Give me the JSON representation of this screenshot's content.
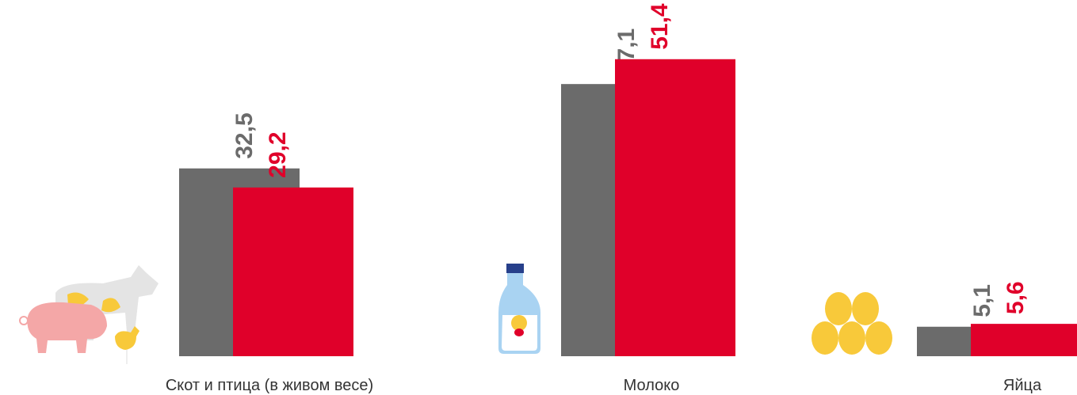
{
  "chart_data": {
    "type": "bar",
    "categories": [
      "Скот и птица (в живом весе)",
      "Молоко",
      "Яйца"
    ],
    "series": [
      {
        "color": "#6b6b6b",
        "values": [
          32.5,
          47.1,
          5.1
        ],
        "value_labels": [
          "32,5",
          "47,1",
          "5,1"
        ]
      },
      {
        "color": "#e0002a",
        "values": [
          29.2,
          51.4,
          5.6
        ],
        "value_labels": [
          "29,2",
          "51,4",
          "5,6"
        ]
      }
    ],
    "ylim": [
      0,
      60
    ]
  }
}
